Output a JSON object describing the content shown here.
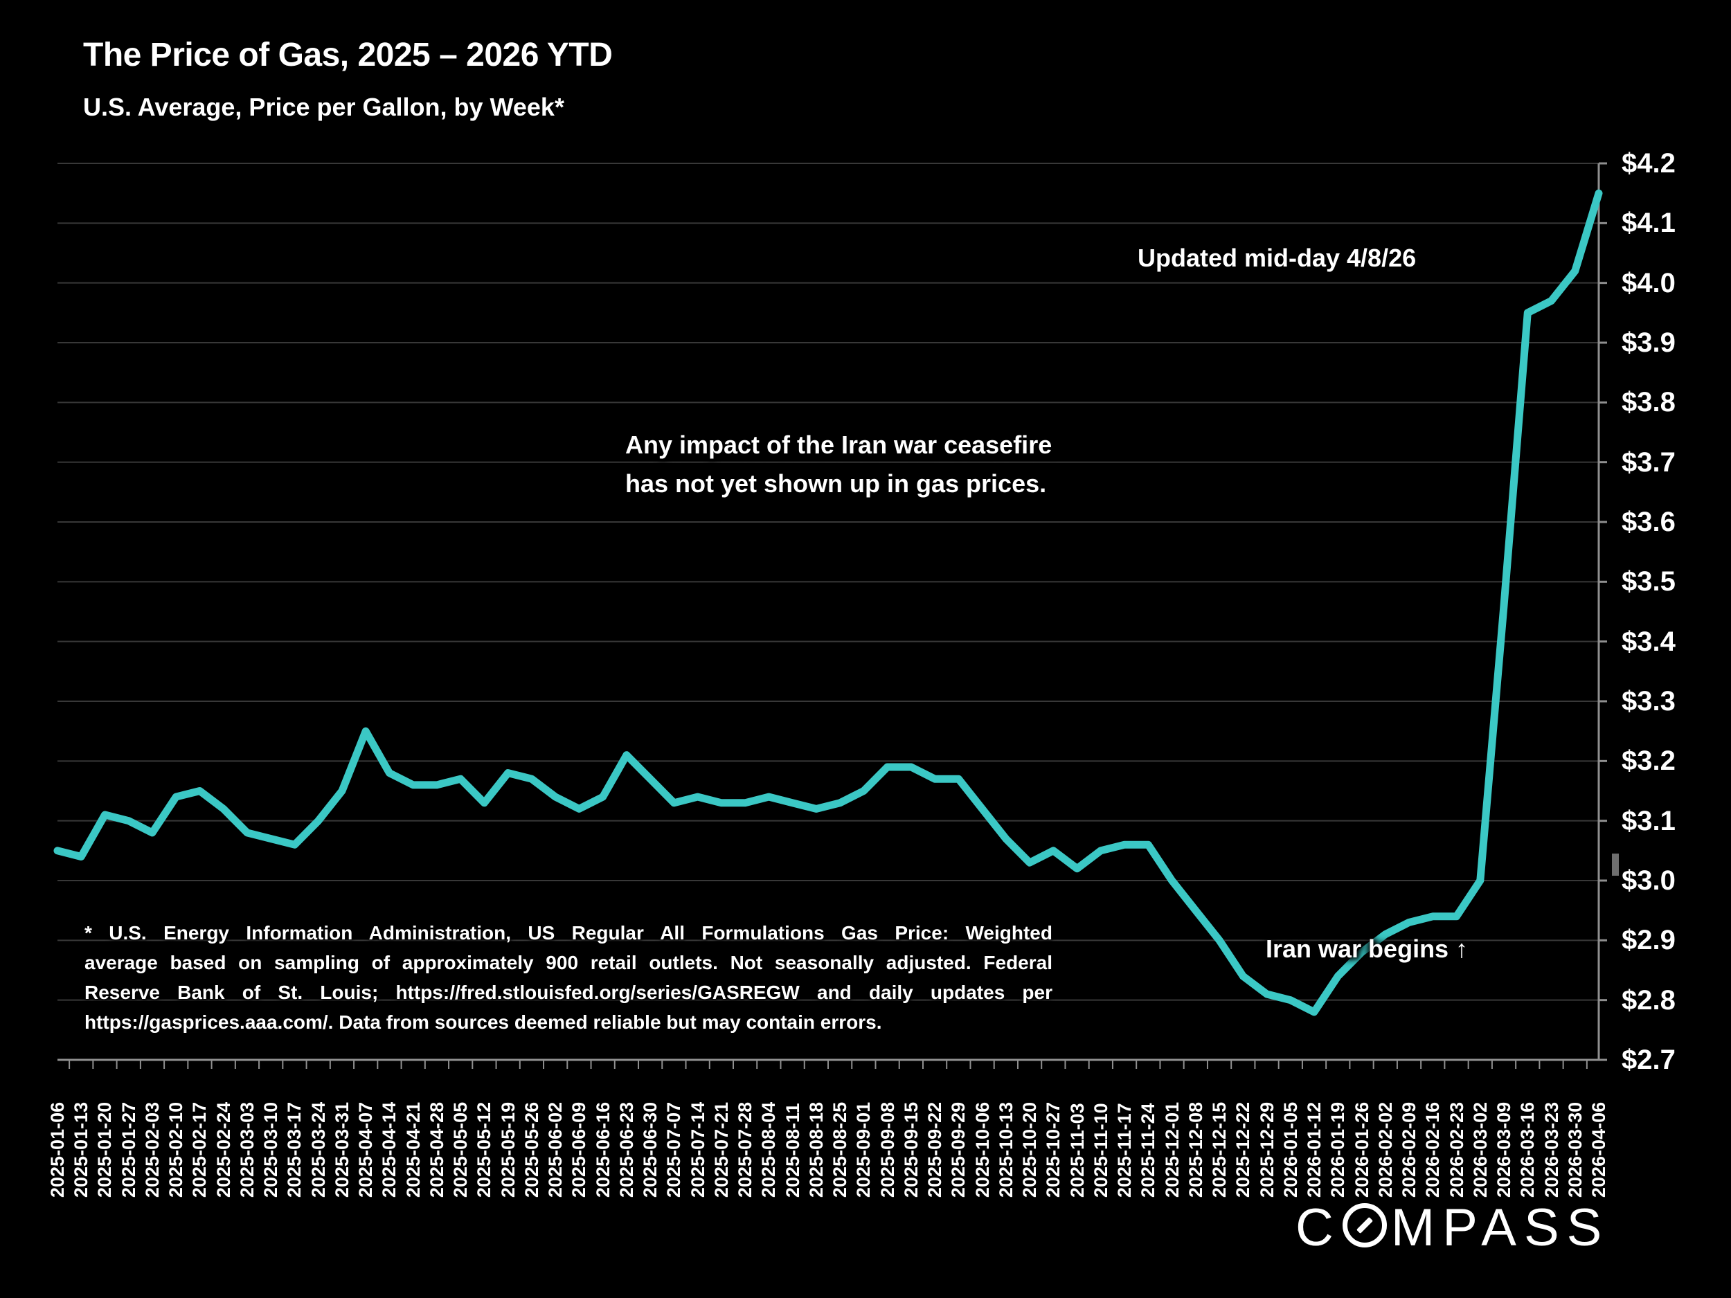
{
  "slide": {
    "title": "The Price of Gas, 2025 – 2026 YTD",
    "subtitle": "U.S. Average, Price per Gallon, by Week*",
    "updated_note": "Updated mid-day 4/8/26",
    "ceasefire_note_line1": "Any impact of the Iran war ceasefire",
    "ceasefire_note_line2": "has not yet shown up in gas prices.",
    "war_note": "Iran war begins ↑",
    "footnote_lines": [
      "* U.S. Energy Information Administration, US Regular All Formulations Gas Price: Weighted",
      "average based on sampling of approximately 900 retail outlets. Not seasonally adjusted. Federal",
      "Reserve Bank of St. Louis; https://fred.stlouisfed.org/series/GASREGW and daily updates per",
      "https://gasprices.aaa.com/. Data from sources deemed reliable but may contain errors."
    ],
    "logo": {
      "text": "COMPASS",
      "prefix": "C",
      "suffix": "MPASS"
    }
  },
  "chart_data": {
    "type": "line",
    "title": "The Price of Gas, 2025 – 2026 YTD",
    "series_name": "U.S. average gas price per gallon, weekly",
    "line_color": "#3BC8C5",
    "grid_color": "#383838",
    "axis_color": "#8f8f8f",
    "background": "#000000",
    "grid": true,
    "legend": false,
    "y_axis": {
      "position": "right",
      "min": 2.7,
      "max": 4.2,
      "step": 0.1,
      "tick_labels": [
        "$4.2",
        "$4.1",
        "$4.0",
        "$3.9",
        "$3.8",
        "$3.7",
        "$3.6",
        "$3.5",
        "$3.4",
        "$3.3",
        "$3.2",
        "$3.1",
        "$3.0",
        "$2.9",
        "$2.8",
        "$2.7"
      ]
    },
    "x": [
      "2025-01-06",
      "2025-01-13",
      "2025-01-20",
      "2025-01-27",
      "2025-02-03",
      "2025-02-10",
      "2025-02-17",
      "2025-02-24",
      "2025-03-03",
      "2025-03-10",
      "2025-03-17",
      "2025-03-24",
      "2025-03-31",
      "2025-04-07",
      "2025-04-14",
      "2025-04-21",
      "2025-04-28",
      "2025-05-05",
      "2025-05-12",
      "2025-05-19",
      "2025-05-26",
      "2025-06-02",
      "2025-06-09",
      "2025-06-16",
      "2025-06-23",
      "2025-06-30",
      "2025-07-07",
      "2025-07-14",
      "2025-07-21",
      "2025-07-28",
      "2025-08-04",
      "2025-08-11",
      "2025-08-18",
      "2025-08-25",
      "2025-09-01",
      "2025-09-08",
      "2025-09-15",
      "2025-09-22",
      "2025-09-29",
      "2025-10-06",
      "2025-10-13",
      "2025-10-20",
      "2025-10-27",
      "2025-11-03",
      "2025-11-10",
      "2025-11-17",
      "2025-11-24",
      "2025-12-01",
      "2025-12-08",
      "2025-12-15",
      "2025-12-22",
      "2025-12-29",
      "2026-01-05",
      "2026-01-12",
      "2026-01-19",
      "2026-01-26",
      "2026-02-02",
      "2026-02-09",
      "2026-02-16",
      "2026-02-23",
      "2026-03-02",
      "2026-03-09",
      "2026-03-16",
      "2026-03-23",
      "2026-03-30",
      "2026-04-06"
    ],
    "values": [
      3.05,
      3.04,
      3.11,
      3.1,
      3.08,
      3.14,
      3.15,
      3.12,
      3.08,
      3.07,
      3.06,
      3.1,
      3.15,
      3.25,
      3.18,
      3.16,
      3.16,
      3.17,
      3.13,
      3.18,
      3.17,
      3.14,
      3.12,
      3.14,
      3.21,
      3.17,
      3.13,
      3.14,
      3.13,
      3.13,
      3.14,
      3.13,
      3.12,
      3.13,
      3.15,
      3.19,
      3.19,
      3.17,
      3.17,
      3.12,
      3.07,
      3.03,
      3.05,
      3.02,
      3.05,
      3.06,
      3.06,
      3.0,
      2.95,
      2.9,
      2.84,
      2.81,
      2.8,
      2.78,
      2.84,
      2.88,
      2.91,
      2.93,
      2.94,
      2.94,
      3.0,
      3.46,
      3.95,
      3.97,
      4.02,
      4.15
    ]
  }
}
